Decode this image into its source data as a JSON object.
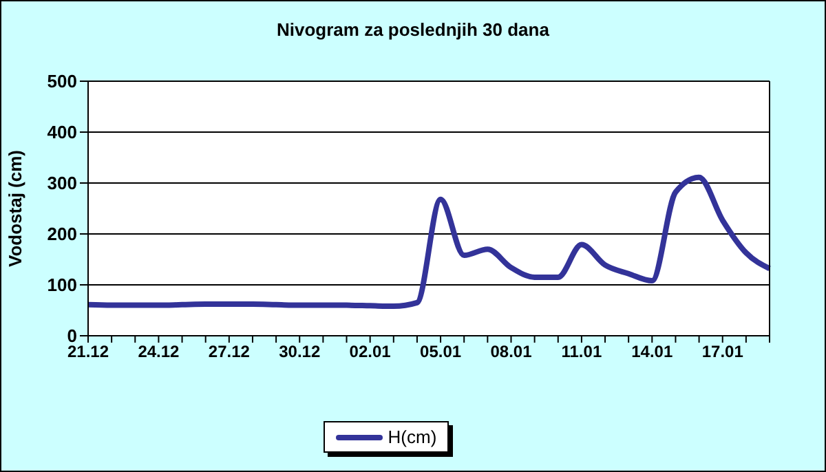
{
  "chart_data": {
    "type": "line",
    "title": "Nivogram za poslednjih 30 dana",
    "ylabel": "Vodostaj (cm)",
    "categories": [
      "21.12",
      null,
      null,
      "24.12",
      null,
      null,
      "27.12",
      null,
      null,
      "30.12",
      null,
      null,
      "02.01",
      null,
      null,
      "05.01",
      null,
      null,
      "08.01",
      null,
      null,
      "11.01",
      null,
      null,
      "14.01",
      null,
      null,
      "17.01",
      null,
      null
    ],
    "series": [
      {
        "name": "H(cm)",
        "color": "#333399",
        "values": [
          61,
          60,
          60,
          60,
          61,
          62,
          62,
          62,
          61,
          60,
          60,
          60,
          59,
          58,
          65,
          268,
          158,
          170,
          134,
          115,
          115,
          179,
          139,
          122,
          108,
          282,
          311,
          227,
          163,
          132
        ]
      }
    ],
    "ylim": [
      0,
      500
    ],
    "yticks": [
      0,
      100,
      200,
      300,
      400,
      500
    ],
    "grid": "y",
    "legend": "bottom",
    "marker": "none",
    "line_style": "solid"
  }
}
